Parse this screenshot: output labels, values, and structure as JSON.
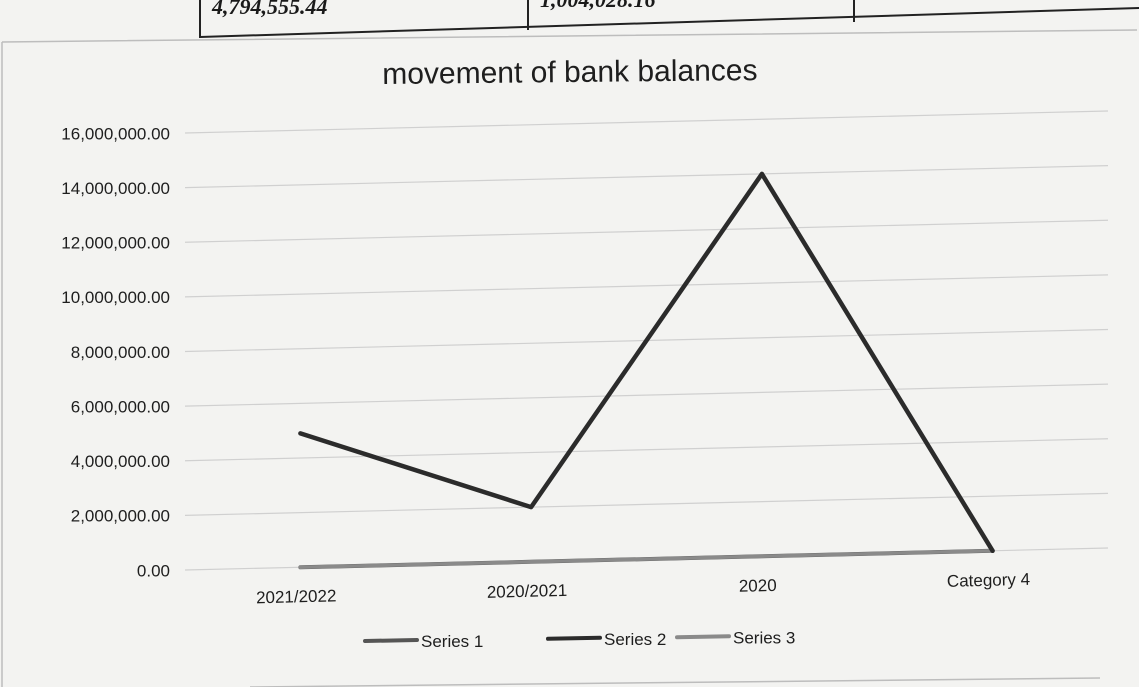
{
  "table_fragment": {
    "cells": [
      "4,794,555.44",
      "1,004,028.16",
      ""
    ]
  },
  "chart_data": {
    "type": "line",
    "title": "movement of bank balances",
    "xlabel": "",
    "ylabel": "",
    "categories": [
      "2021/2022",
      "2020/2021",
      "2020",
      "Category 4"
    ],
    "y_ticks": [
      "0.00",
      "2,000,000.00",
      "4,000,000.00",
      "6,000,000.00",
      "8,000,000.00",
      "10,000,000.00",
      "12,000,000.00",
      "14,000,000.00",
      "16,000,000.00"
    ],
    "ylim": [
      0,
      16000000
    ],
    "grid": true,
    "legend_position": "bottom",
    "series": [
      {
        "name": "Series 1",
        "values": [
          0,
          0,
          0,
          0
        ],
        "color": "#555555"
      },
      {
        "name": "Series 2",
        "values": [
          4900000,
          2000000,
          14000000,
          0
        ],
        "color": "#2b2b2b"
      },
      {
        "name": "Series 3",
        "values": [
          0,
          0,
          0,
          0
        ],
        "color": "#8a8a8a"
      }
    ]
  }
}
